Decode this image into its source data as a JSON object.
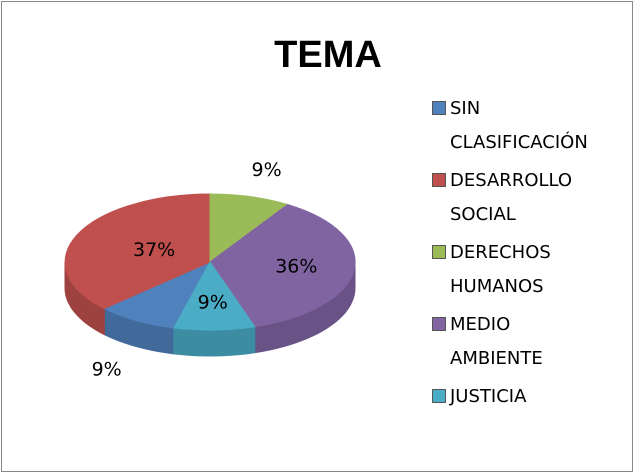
{
  "chart_data": {
    "type": "pie",
    "title": "TEMA",
    "categories": [
      "SIN CLASIFICACIÓN",
      "DESARROLLO SOCIAL",
      "DERECHOS HUMANOS",
      "MEDIO AMBIENTE",
      "JUSTICIA"
    ],
    "values": [
      9,
      37,
      9,
      36,
      9
    ],
    "value_labels": [
      "9%",
      "37%",
      "9%",
      "36%",
      "9%"
    ],
    "colors": [
      "#4f81bd",
      "#c0504d",
      "#9bbb59",
      "#8064a2",
      "#4bacc6"
    ],
    "legend": "right"
  }
}
